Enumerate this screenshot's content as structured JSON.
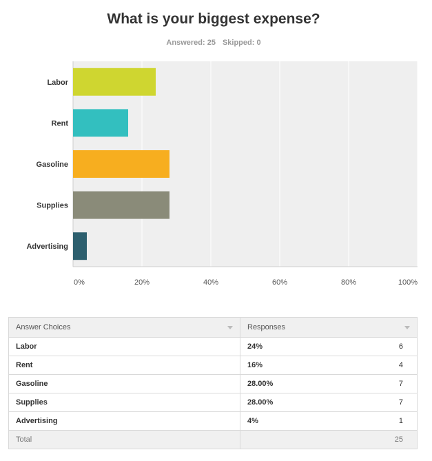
{
  "survey": {
    "question": "What is your biggest expense?",
    "answered_label": "Answered: 25",
    "skipped_label": "Skipped: 0"
  },
  "colors": {
    "plot_bg": "#efefef",
    "grid": "#ffffff",
    "axis": "#cccccc"
  },
  "chart_data": {
    "type": "bar",
    "orientation": "horizontal",
    "categories": [
      "Labor",
      "Rent",
      "Gasoline",
      "Supplies",
      "Advertising"
    ],
    "values": [
      24,
      16,
      28,
      28,
      4
    ],
    "colors": [
      "#cfd630",
      "#33bfbf",
      "#f7ae1f",
      "#8a8b79",
      "#2d5f6e"
    ],
    "xlim": [
      0,
      100
    ],
    "ticks": [
      0,
      20,
      40,
      60,
      80,
      100
    ],
    "tick_labels": [
      "0%",
      "20%",
      "40%",
      "60%",
      "80%",
      "100%"
    ],
    "grid": true,
    "legend": "none",
    "title": "What is your biggest expense?",
    "xlabel": "",
    "ylabel": ""
  },
  "table": {
    "headers": [
      "Answer Choices",
      "Responses"
    ],
    "rows": [
      {
        "choice": "Labor",
        "percent": "24%",
        "count": "6"
      },
      {
        "choice": "Rent",
        "percent": "16%",
        "count": "4"
      },
      {
        "choice": "Gasoline",
        "percent": "28.00%",
        "count": "7"
      },
      {
        "choice": "Supplies",
        "percent": "28.00%",
        "count": "7"
      },
      {
        "choice": "Advertising",
        "percent": "4%",
        "count": "1"
      }
    ],
    "total_label": "Total",
    "total_count": "25"
  }
}
